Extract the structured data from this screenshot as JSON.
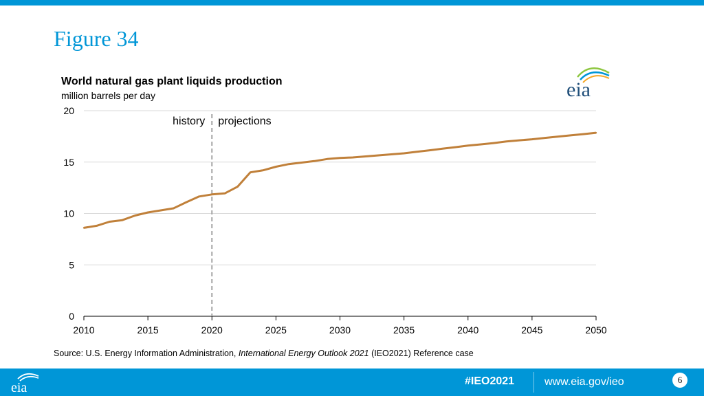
{
  "slide": {
    "figure_title": "Figure 34",
    "source_prefix": "Source:  U.S. Energy Information Administration, ",
    "source_italic": "International Energy Outlook 2021",
    "source_suffix": " (IEO2021) Reference case",
    "hashtag": "#IEO2021",
    "url": "www.eia.gov/ieo",
    "page_number": "6",
    "logo_text": "eia",
    "colors": {
      "accent": "#0096d7",
      "line": "#c0803a",
      "grid": "#d9d9d9",
      "divider": "#a6a6a6"
    }
  },
  "chart_data": {
    "type": "line",
    "title": "World natural gas plant liquids production",
    "ylabel": "million barrels per day",
    "xlabel": "",
    "xlim": [
      2010,
      2050
    ],
    "ylim": [
      0,
      20
    ],
    "xticks": [
      2010,
      2015,
      2020,
      2025,
      2030,
      2035,
      2040,
      2045,
      2050
    ],
    "yticks": [
      0,
      5,
      10,
      15,
      20
    ],
    "grid": true,
    "divider_year": 2020,
    "annotations": {
      "history": "history",
      "projections": "projections"
    },
    "series": [
      {
        "name": "World natural gas plant liquids production",
        "x": [
          2010,
          2011,
          2012,
          2013,
          2014,
          2015,
          2016,
          2017,
          2018,
          2019,
          2020,
          2021,
          2022,
          2023,
          2024,
          2025,
          2026,
          2027,
          2028,
          2029,
          2030,
          2031,
          2032,
          2033,
          2034,
          2035,
          2036,
          2037,
          2038,
          2039,
          2040,
          2041,
          2042,
          2043,
          2044,
          2045,
          2046,
          2047,
          2048,
          2049,
          2050
        ],
        "values": [
          8.6,
          8.8,
          9.2,
          9.35,
          9.8,
          10.1,
          10.3,
          10.5,
          11.1,
          11.65,
          11.85,
          11.95,
          12.6,
          14.0,
          14.2,
          14.55,
          14.8,
          14.95,
          15.1,
          15.3,
          15.4,
          15.45,
          15.55,
          15.65,
          15.75,
          15.85,
          16.0,
          16.15,
          16.3,
          16.45,
          16.6,
          16.72,
          16.85,
          17.0,
          17.12,
          17.22,
          17.35,
          17.47,
          17.6,
          17.72,
          17.85
        ]
      }
    ]
  }
}
